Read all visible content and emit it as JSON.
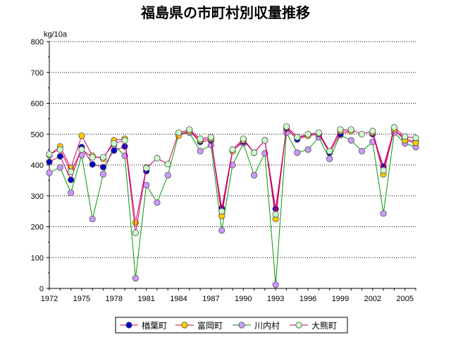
{
  "chart_data": {
    "type": "line",
    "title": "福島県の市町村別収量推移",
    "ylabel": "kg/10a",
    "xlabel": "",
    "ylim": [
      0,
      800
    ],
    "yticks": [
      "0",
      "100",
      "200",
      "300",
      "400",
      "500",
      "600",
      "700",
      "800"
    ],
    "x": [
      1972,
      1973,
      1974,
      1975,
      1976,
      1977,
      1978,
      1979,
      1980,
      1981,
      1982,
      1983,
      1984,
      1985,
      1986,
      1987,
      1988,
      1989,
      1990,
      1991,
      1992,
      1993,
      1994,
      1995,
      1996,
      1997,
      1998,
      1999,
      2000,
      2001,
      2002,
      2003,
      2004,
      2005,
      2006
    ],
    "xticks": [
      "1972",
      "1975",
      "1978",
      "1981",
      "1984",
      "1987",
      "1990",
      "1993",
      "1996",
      "1999",
      "2002",
      "2005"
    ],
    "grid": true,
    "legend_position": "bottom",
    "series": [
      {
        "name": "楢葉町",
        "color": "#0000cc",
        "line_color": "#cc0066",
        "values": [
          410,
          428,
          352,
          458,
          402,
          393,
          447,
          460,
          null,
          380,
          null,
          null,
          500,
          510,
          475,
          480,
          260,
          447,
          475,
          null,
          480,
          258,
          518,
          483,
          495,
          500,
          440,
          500,
          510,
          null,
          500,
          395,
          515,
          485,
          475
        ]
      },
      {
        "name": "富岡町",
        "color": "#ffcc00",
        "line_color": "#cc0066",
        "values": [
          432,
          460,
          390,
          495,
          430,
          420,
          480,
          485,
          213,
          392,
          null,
          null,
          495,
          510,
          480,
          485,
          235,
          445,
          480,
          440,
          480,
          225,
          522,
          490,
          495,
          502,
          445,
          510,
          510,
          null,
          505,
          370,
          515,
          480,
          472
        ]
      },
      {
        "name": "川内村",
        "color": "#cc99ff",
        "line_color": "#009900",
        "values": [
          375,
          392,
          310,
          432,
          225,
          370,
          465,
          430,
          33,
          335,
          278,
          367,
          500,
          505,
          445,
          465,
          188,
          400,
          470,
          367,
          438,
          12,
          505,
          440,
          450,
          490,
          420,
          497,
          480,
          445,
          475,
          243,
          505,
          470,
          458
        ]
      },
      {
        "name": "大熊町",
        "color": "#ccffcc",
        "line_color": "#cc0066",
        "values": [
          435,
          450,
          378,
          450,
          425,
          425,
          470,
          480,
          180,
          390,
          422,
          403,
          505,
          515,
          485,
          490,
          250,
          450,
          485,
          440,
          480,
          240,
          525,
          490,
          500,
          505,
          445,
          515,
          515,
          500,
          510,
          383,
          522,
          492,
          488
        ]
      }
    ]
  }
}
